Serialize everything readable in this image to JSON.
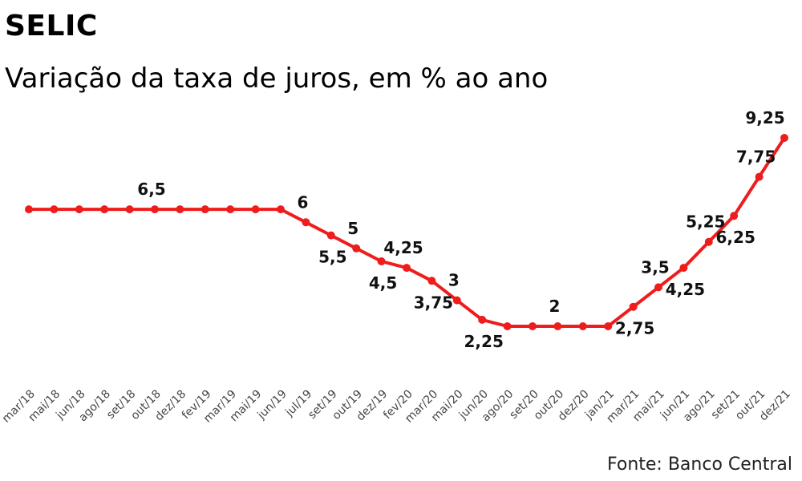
{
  "header": {
    "title": "SELIC",
    "subtitle": "Variação da taxa de juros, em % ao ano"
  },
  "footer": {
    "source": "Fonte: Banco Central"
  },
  "chart_data": {
    "type": "line",
    "title": "SELIC",
    "subtitle": "Variação da taxa de juros, em % ao ano",
    "xlabel": "",
    "ylabel": "",
    "ylim": [
      0,
      10
    ],
    "grid": false,
    "legend": "none",
    "line_color": "#ee1c1c",
    "categories": [
      "mar/18",
      "mai/18",
      "jun/18",
      "ago/18",
      "set/18",
      "out/18",
      "dez/18",
      "fev/19",
      "mar/19",
      "mai/19",
      "jun/19",
      "jul/19",
      "set/19",
      "out/19",
      "dez/19",
      "fev/20",
      "mar/20",
      "mai/20",
      "jun/20",
      "ago/20",
      "set/20",
      "out/20",
      "dez/20",
      "jan/21",
      "mar/21",
      "mai/21",
      "jun/21",
      "ago/21",
      "set/21",
      "out/21",
      "dez/21"
    ],
    "values": [
      6.5,
      6.5,
      6.5,
      6.5,
      6.5,
      6.5,
      6.5,
      6.5,
      6.5,
      6.5,
      6.5,
      6,
      5.5,
      5,
      4.5,
      4.25,
      3.75,
      3,
      2.25,
      2,
      2,
      2,
      2,
      2,
      2.75,
      3.5,
      4.25,
      5.25,
      6.25,
      7.75,
      9.25
    ],
    "data_labels": [
      {
        "index": 5,
        "text": "6,5",
        "pos": "above"
      },
      {
        "index": 11,
        "text": "6",
        "pos": "above"
      },
      {
        "index": 12,
        "text": "5,5",
        "pos": "below"
      },
      {
        "index": 13,
        "text": "5",
        "pos": "above"
      },
      {
        "index": 14,
        "text": "4,5",
        "pos": "below"
      },
      {
        "index": 15,
        "text": "4,25",
        "pos": "above"
      },
      {
        "index": 16,
        "text": "3,75",
        "pos": "below"
      },
      {
        "index": 17,
        "text": "3",
        "pos": "above"
      },
      {
        "index": 18,
        "text": "2,25",
        "pos": "below"
      },
      {
        "index": 21,
        "text": "2",
        "pos": "above"
      },
      {
        "index": 24,
        "text": "2,75",
        "pos": "below"
      },
      {
        "index": 25,
        "text": "3,5",
        "pos": "above"
      },
      {
        "index": 26,
        "text": "4,25",
        "pos": "below"
      },
      {
        "index": 27,
        "text": "5,25",
        "pos": "above"
      },
      {
        "index": 28,
        "text": "6,25",
        "pos": "below"
      },
      {
        "index": 29,
        "text": "7,75",
        "pos": "above"
      },
      {
        "index": 30,
        "text": "9,25",
        "pos": "above"
      }
    ]
  }
}
